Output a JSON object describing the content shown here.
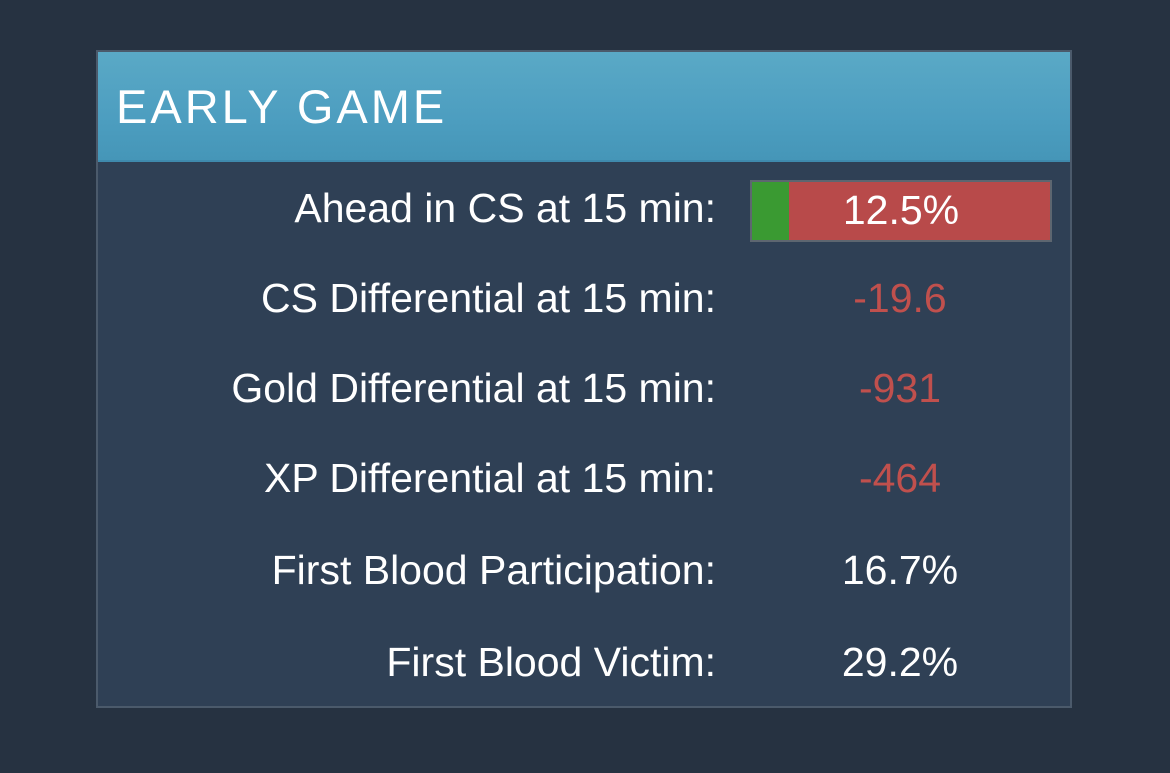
{
  "panel": {
    "title": "EARLY GAME",
    "colors": {
      "header": "#4d9ec0",
      "panel_bg": "#2f4055",
      "page_bg": "#263241",
      "negative": "#c0504d",
      "bar_green": "#3a9a32",
      "bar_red": "#b84a4a"
    }
  },
  "stats": {
    "ahead_cs": {
      "label": "Ahead in CS at 15 min:",
      "value": "12.5%",
      "fraction": 0.125
    },
    "cs_diff": {
      "label": "CS Differential at 15 min:",
      "value": "-19.6"
    },
    "gold_diff": {
      "label": "Gold Differential at 15 min:",
      "value": "-931"
    },
    "xp_diff": {
      "label": "XP Differential at 15 min:",
      "value": "-464"
    },
    "first_blood_participation": {
      "label": "First Blood Participation:",
      "value": "16.7%"
    },
    "first_blood_victim": {
      "label": "First Blood Victim:",
      "value": "29.2%"
    }
  }
}
